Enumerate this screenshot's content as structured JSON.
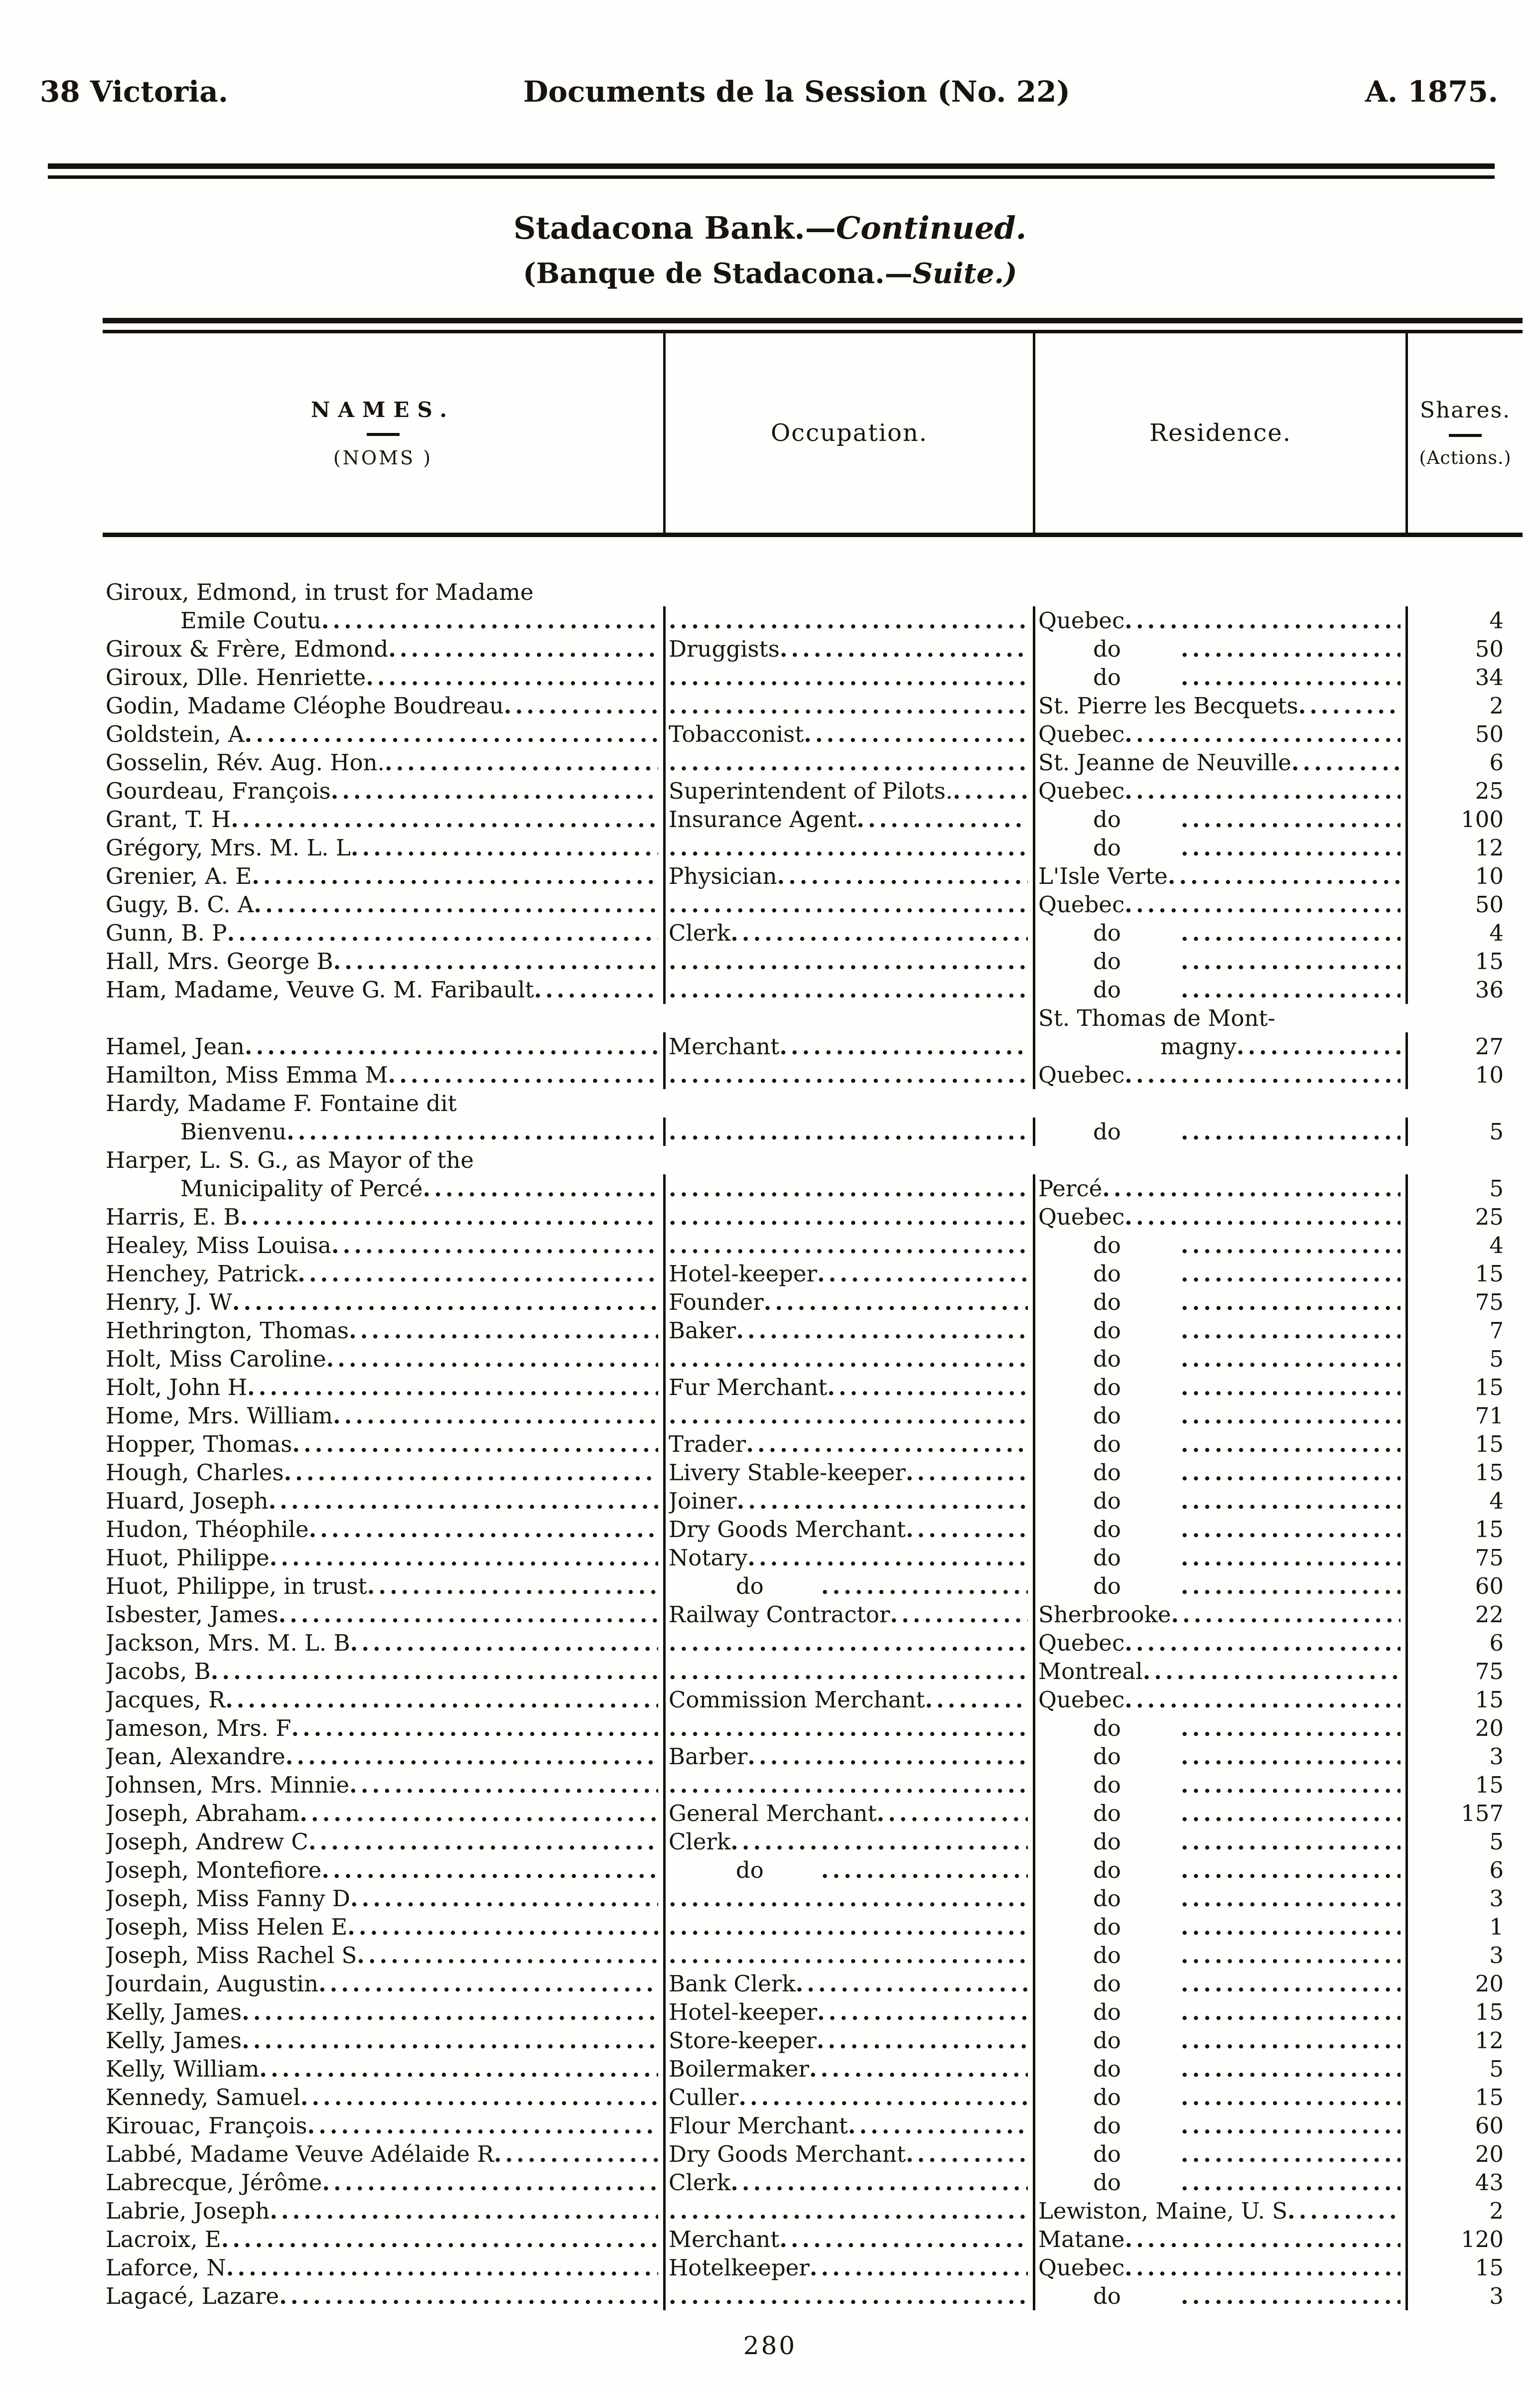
{
  "page": {
    "header_left": "38 Victoria.",
    "header_center": "Documents de la Session (No. 22)",
    "header_right": "A. 1875.",
    "title_en_main": "Stadacona Bank.—",
    "title_en_italic": "Continued.",
    "title_fr_main": "(Banque de Stadacona.—",
    "title_fr_italic": "Suite.)",
    "page_number": "280"
  },
  "table": {
    "headers": {
      "names_en": "NAMES.",
      "names_fr": "(NOMS )",
      "occupation": "Occupation.",
      "residence": "Residence.",
      "shares_en": "Shares.",
      "shares_fr": "(Actions.)"
    },
    "rows": [
      {
        "name": [
          "Giroux, Edmond, in trust for Madame",
          "Emile Coutu"
        ],
        "occupation": "",
        "residence": "Quebec",
        "shares": "4"
      },
      {
        "name": "Giroux & Frère, Edmond",
        "occupation": "Druggists",
        "residence": "do",
        "shares": "50"
      },
      {
        "name": "Giroux, Dlle. Henriette",
        "occupation": "",
        "residence": "do",
        "shares": "34"
      },
      {
        "name": "Godin, Madame Cléophe Boudreau",
        "occupation": "",
        "residence": "St. Pierre les Becquets",
        "shares": "2"
      },
      {
        "name": "Goldstein, A",
        "occupation": "Tobacconist",
        "residence": "Quebec",
        "shares": "50"
      },
      {
        "name": "Gosselin, Rév. Aug. Hon.",
        "occupation": "",
        "residence": "St. Jeanne de Neuville",
        "shares": "6"
      },
      {
        "name": "Gourdeau, François",
        "occupation": "Superintendent of Pilots.",
        "residence": "Quebec",
        "shares": "25"
      },
      {
        "name": "Grant, T. H",
        "occupation": "Insurance Agent",
        "residence": "do",
        "shares": "100"
      },
      {
        "name": "Grégory, Mrs. M. L. L",
        "occupation": "",
        "residence": "do",
        "shares": "12"
      },
      {
        "name": "Grenier, A. E",
        "occupation": "Physician",
        "residence": "L'Isle Verte",
        "shares": "10"
      },
      {
        "name": "Gugy, B. C. A",
        "occupation": "",
        "residence": "Quebec",
        "shares": "50"
      },
      {
        "name": "Gunn, B. P",
        "occupation": "Clerk",
        "residence": "do",
        "shares": "4"
      },
      {
        "name": "Hall, Mrs. George B",
        "occupation": "",
        "residence": "do",
        "shares": "15"
      },
      {
        "name": "Ham, Madame, Veuve G. M. Faribault",
        "occupation": "",
        "residence": "do",
        "shares": "36"
      },
      {
        "name": "Hamel, Jean",
        "occupation": "Merchant",
        "residence": [
          "St. Thomas de Mont-",
          "magny"
        ],
        "shares": "27"
      },
      {
        "name": "Hamilton, Miss Emma M",
        "occupation": "",
        "residence": "Quebec",
        "shares": "10"
      },
      {
        "name": [
          "Hardy, Madame F. Fontaine dit",
          "Bienvenu"
        ],
        "occupation": "",
        "residence": "do",
        "shares": "5"
      },
      {
        "name": [
          "Harper, L. S. G., as Mayor of the",
          "Municipality of Percé"
        ],
        "occupation": "",
        "residence": "Percé",
        "shares": "5"
      },
      {
        "name": "Harris, E. B",
        "occupation": "",
        "residence": "Quebec",
        "shares": "25"
      },
      {
        "name": "Healey, Miss Louisa",
        "occupation": "",
        "residence": "do",
        "shares": "4"
      },
      {
        "name": "Henchey, Patrick",
        "occupation": "Hotel-keeper",
        "residence": "do",
        "shares": "15"
      },
      {
        "name": "Henry, J. W",
        "occupation": "Founder",
        "residence": "do",
        "shares": "75"
      },
      {
        "name": "Hethrington, Thomas",
        "occupation": "Baker",
        "residence": "do",
        "shares": "7"
      },
      {
        "name": "Holt, Miss Caroline",
        "occupation": "",
        "residence": "do",
        "shares": "5"
      },
      {
        "name": "Holt, John H",
        "occupation": "Fur Merchant",
        "residence": "do",
        "shares": "15"
      },
      {
        "name": "Home, Mrs. William",
        "occupation": "",
        "residence": "do",
        "shares": "71"
      },
      {
        "name": "Hopper, Thomas",
        "occupation": "Trader",
        "residence": "do",
        "shares": "15"
      },
      {
        "name": "Hough, Charles",
        "occupation": "Livery Stable-keeper",
        "residence": "do",
        "shares": "15"
      },
      {
        "name": "Huard, Joseph",
        "occupation": "Joiner",
        "residence": "do",
        "shares": "4"
      },
      {
        "name": "Hudon, Théophile",
        "occupation": "Dry Goods Merchant",
        "residence": "do",
        "shares": "15"
      },
      {
        "name": "Huot, Philippe",
        "occupation": "Notary",
        "residence": "do",
        "shares": "75"
      },
      {
        "name": "Huot, Philippe, in trust",
        "occupation": "do",
        "residence": "do",
        "shares": "60"
      },
      {
        "name": "Isbester, James",
        "occupation": "Railway Contractor",
        "residence": "Sherbrooke",
        "shares": "22"
      },
      {
        "name": "Jackson, Mrs. M. L. B",
        "occupation": "",
        "residence": "Quebec",
        "shares": "6"
      },
      {
        "name": "Jacobs, B",
        "occupation": "",
        "residence": "Montreal",
        "shares": "75"
      },
      {
        "name": "Jacques, R",
        "occupation": "Commission Merchant",
        "residence": "Quebec",
        "shares": "15"
      },
      {
        "name": "Jameson, Mrs. F",
        "occupation": "",
        "residence": "do",
        "shares": "20"
      },
      {
        "name": "Jean, Alexandre",
        "occupation": "Barber",
        "residence": "do",
        "shares": "3"
      },
      {
        "name": "Johnsen, Mrs. Minnie",
        "occupation": "",
        "residence": "do",
        "shares": "15"
      },
      {
        "name": "Joseph, Abraham",
        "occupation": "General Merchant",
        "residence": "do",
        "shares": "157"
      },
      {
        "name": "Joseph, Andrew C",
        "occupation": "Clerk",
        "residence": "do",
        "shares": "5"
      },
      {
        "name": "Joseph, Montefiore",
        "occupation": "do",
        "residence": "do",
        "shares": "6"
      },
      {
        "name": "Joseph, Miss Fanny D",
        "occupation": "",
        "residence": "do",
        "shares": "3"
      },
      {
        "name": "Joseph, Miss Helen E",
        "occupation": "",
        "residence": "do",
        "shares": "1"
      },
      {
        "name": "Joseph, Miss Rachel S",
        "occupation": "",
        "residence": "do",
        "shares": "3"
      },
      {
        "name": "Jourdain, Augustin",
        "occupation": "Bank Clerk",
        "residence": "do",
        "shares": "20"
      },
      {
        "name": "Kelly, James",
        "occupation": "Hotel-keeper",
        "residence": "do",
        "shares": "15"
      },
      {
        "name": "Kelly, James",
        "occupation": "Store-keeper",
        "residence": "do",
        "shares": "12"
      },
      {
        "name": "Kelly, William",
        "occupation": "Boilermaker",
        "residence": "do",
        "shares": "5"
      },
      {
        "name": "Kennedy, Samuel",
        "occupation": "Culler",
        "residence": "do",
        "shares": "15"
      },
      {
        "name": "Kirouac, François",
        "occupation": "Flour Merchant",
        "residence": "do",
        "shares": "60"
      },
      {
        "name": "Labbé, Madame Veuve Adélaide R",
        "occupation": "Dry Goods Merchant",
        "residence": "do",
        "shares": "20"
      },
      {
        "name": "Labrecque, Jérôme",
        "occupation": "Clerk",
        "residence": "do",
        "shares": "43"
      },
      {
        "name": "Labrie, Joseph",
        "occupation": "",
        "residence": "Lewiston, Maine, U. S",
        "shares": "2"
      },
      {
        "name": "Lacroix, E",
        "occupation": "Merchant",
        "residence": "Matane",
        "shares": "120"
      },
      {
        "name": "Laforce, N",
        "occupation": "Hotelkeeper",
        "residence": "Quebec",
        "shares": "15"
      },
      {
        "name": "Lagacé, Lazare",
        "occupation": "",
        "residence": "do",
        "shares": "3"
      }
    ]
  }
}
